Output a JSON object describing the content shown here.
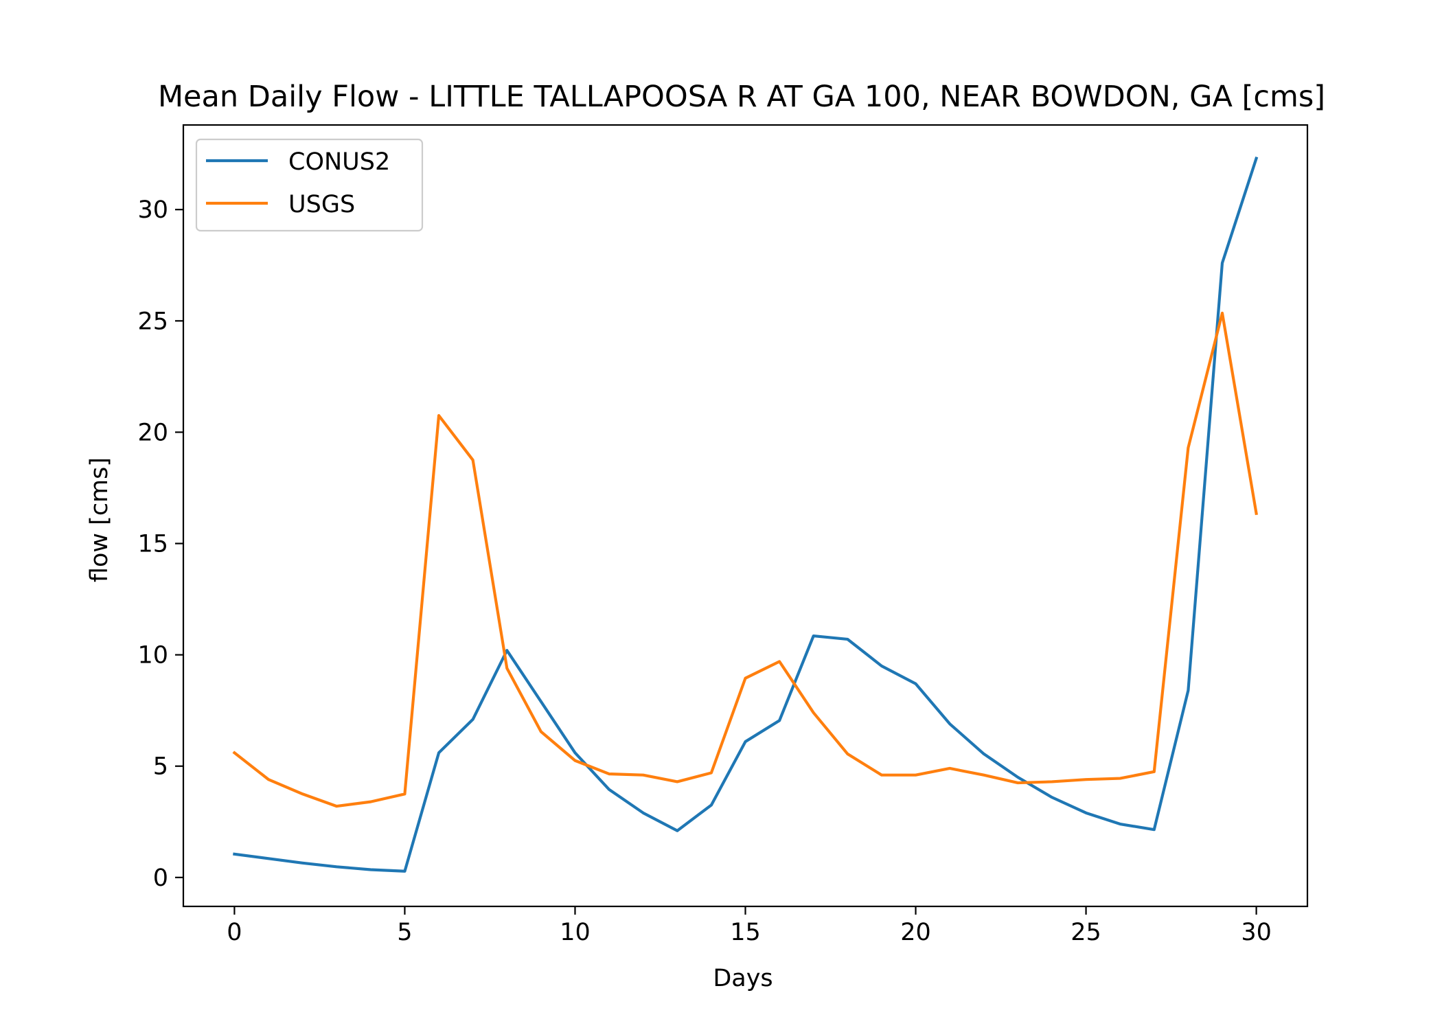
{
  "chart_data": {
    "type": "line",
    "title": "Mean Daily Flow - LITTLE TALLAPOOSA R AT GA 100, NEAR BOWDON, GA [cms]",
    "xlabel": "Days",
    "ylabel": "flow [cms]",
    "xlim": [
      -1.5,
      31.5
    ],
    "ylim": [
      -1.3,
      33.8
    ],
    "xticks": [
      0,
      5,
      10,
      15,
      20,
      25,
      30
    ],
    "yticks": [
      0,
      5,
      10,
      15,
      20,
      25,
      30
    ],
    "grid": false,
    "legend_position": "top-left",
    "x": [
      0,
      1,
      2,
      3,
      4,
      5,
      6,
      7,
      8,
      9,
      10,
      11,
      12,
      13,
      14,
      15,
      16,
      17,
      18,
      19,
      20,
      21,
      22,
      23,
      24,
      25,
      26,
      27,
      28,
      29,
      30
    ],
    "series": [
      {
        "name": "CONUS2",
        "color": "#1f77b4",
        "values": [
          1.05,
          0.85,
          0.65,
          0.48,
          0.35,
          0.28,
          5.6,
          7.1,
          10.2,
          7.9,
          5.6,
          3.95,
          2.9,
          2.1,
          3.25,
          6.1,
          7.05,
          10.85,
          10.7,
          9.5,
          8.7,
          6.9,
          5.55,
          4.5,
          3.6,
          2.9,
          2.4,
          2.15,
          8.4,
          27.6,
          32.3
        ]
      },
      {
        "name": "USGS",
        "color": "#ff7f0e",
        "values": [
          5.6,
          4.4,
          3.75,
          3.2,
          3.4,
          3.75,
          20.75,
          18.75,
          9.4,
          6.55,
          5.25,
          4.65,
          4.6,
          4.3,
          4.7,
          8.95,
          9.7,
          7.4,
          5.55,
          4.6,
          4.6,
          4.9,
          4.6,
          4.25,
          4.3,
          4.4,
          4.45,
          4.75,
          19.3,
          25.35,
          16.35
        ]
      }
    ]
  }
}
